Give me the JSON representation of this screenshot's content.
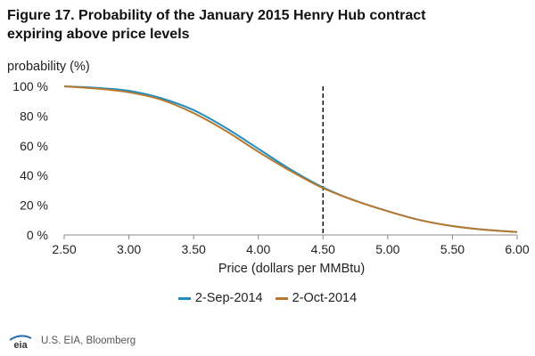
{
  "title_lines": [
    "Figure 17. Probability of the January 2015 Henry Hub contract",
    "expiring above price levels"
  ],
  "source": "U.S. EIA, Bloomberg",
  "logo_text": "eia",
  "colors": {
    "series1": "#1f8fc2",
    "series2": "#b8782e",
    "reference_line": "#111111",
    "axis": "#888888",
    "background": "#ffffff"
  },
  "chart_data": {
    "type": "line",
    "title": "Figure 17. Probability of the January 2015 Henry Hub contract expiring above price levels",
    "xlabel": "Price (dollars per MMBtu)",
    "ylabel": "probability (%)",
    "xlim": [
      2.5,
      6.0
    ],
    "ylim": [
      0,
      100
    ],
    "xticks": [
      "2.50",
      "3.00",
      "3.50",
      "4.00",
      "4.50",
      "5.00",
      "5.50",
      "6.00"
    ],
    "yticks": [
      "0 %",
      "20 %",
      "40 %",
      "60 %",
      "80 %",
      "100 %"
    ],
    "x": [
      2.5,
      2.75,
      3.0,
      3.25,
      3.5,
      3.75,
      4.0,
      4.25,
      4.5,
      4.75,
      5.0,
      5.25,
      5.5,
      5.75,
      6.0
    ],
    "series": [
      {
        "name": "2-Sep-2014",
        "values": [
          100,
          99,
          97,
          92,
          84,
          72,
          58,
          44,
          32,
          23,
          16,
          10,
          6,
          3.5,
          2
        ]
      },
      {
        "name": "2-Oct-2014",
        "values": [
          100,
          98.5,
          96,
          91,
          82,
          70,
          56,
          43,
          31.5,
          23,
          16,
          10,
          6,
          3.5,
          2
        ]
      }
    ],
    "reference_line": {
      "x": 4.5,
      "style": "dashed"
    },
    "grid": false,
    "legend_position": "bottom"
  }
}
